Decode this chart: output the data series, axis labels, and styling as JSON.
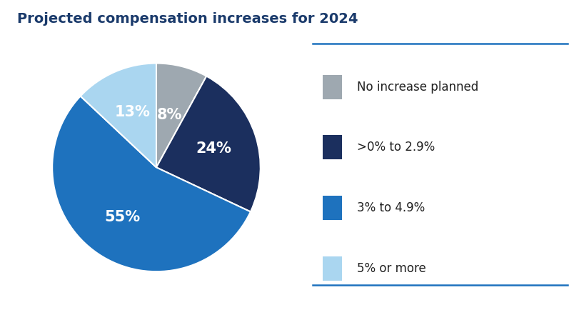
{
  "title": "Projected compensation increases for 2024",
  "title_color": "#1a3a6b",
  "title_fontsize": 14,
  "title_fontweight": "bold",
  "slices": [
    8,
    24,
    55,
    13
  ],
  "labels": [
    "8%",
    "24%",
    "55%",
    "13%"
  ],
  "colors": [
    "#9ea8b0",
    "#1b2f5e",
    "#1e72be",
    "#aad6f0"
  ],
  "legend_labels": [
    "No increase planned",
    ">0% to 2.9%",
    "3% to 4.9%",
    "5% or more"
  ],
  "legend_colors": [
    "#9ea8b0",
    "#1b2f5e",
    "#1e72be",
    "#aad6f0"
  ],
  "label_fontsize": 15,
  "label_color": "white",
  "label_fontweight": "bold",
  "legend_fontsize": 12,
  "legend_text_color": "#222222",
  "divider_color": "#1e72be",
  "background_color": "#ffffff",
  "startangle": 90
}
